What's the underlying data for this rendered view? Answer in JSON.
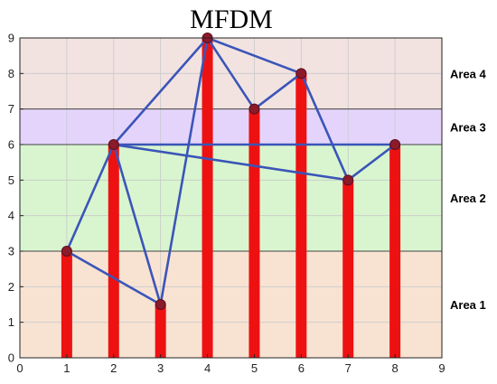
{
  "chart_data": {
    "type": "bar",
    "title": "MFDM",
    "xlabel": "",
    "ylabel": "",
    "xlim": [
      0,
      9
    ],
    "ylim": [
      0,
      9
    ],
    "grid": true,
    "x_ticks": [
      0,
      1,
      2,
      3,
      4,
      5,
      6,
      7,
      8,
      9
    ],
    "y_ticks": [
      0,
      1,
      2,
      3,
      4,
      5,
      6,
      7,
      8,
      9
    ],
    "points": [
      {
        "x": 1,
        "y": 3
      },
      {
        "x": 2,
        "y": 6
      },
      {
        "x": 3,
        "y": 1.5
      },
      {
        "x": 4,
        "y": 9
      },
      {
        "x": 5,
        "y": 7
      },
      {
        "x": 6,
        "y": 8
      },
      {
        "x": 7,
        "y": 5
      },
      {
        "x": 8,
        "y": 6
      }
    ],
    "bars_color": "#ee1111",
    "marker_color": "#8b1a2b",
    "links_color": "#3b55b8",
    "links": [
      [
        1,
        2
      ],
      [
        1,
        3
      ],
      [
        2,
        3
      ],
      [
        2,
        4
      ],
      [
        3,
        4
      ],
      [
        4,
        5
      ],
      [
        4,
        6
      ],
      [
        5,
        6
      ],
      [
        6,
        7
      ],
      [
        7,
        8
      ],
      [
        2,
        7
      ],
      [
        2,
        8
      ]
    ],
    "bands": [
      {
        "label": "Area 1",
        "from": 0,
        "to": 3,
        "color": "#f8e3d3"
      },
      {
        "label": "Area 2",
        "from": 3,
        "to": 6,
        "color": "#d8f5cf"
      },
      {
        "label": "Area 3",
        "from": 6,
        "to": 7,
        "color": "#e4d4fb"
      },
      {
        "label": "Area 4",
        "from": 7,
        "to": 9,
        "color": "#f2e3e1"
      }
    ]
  }
}
